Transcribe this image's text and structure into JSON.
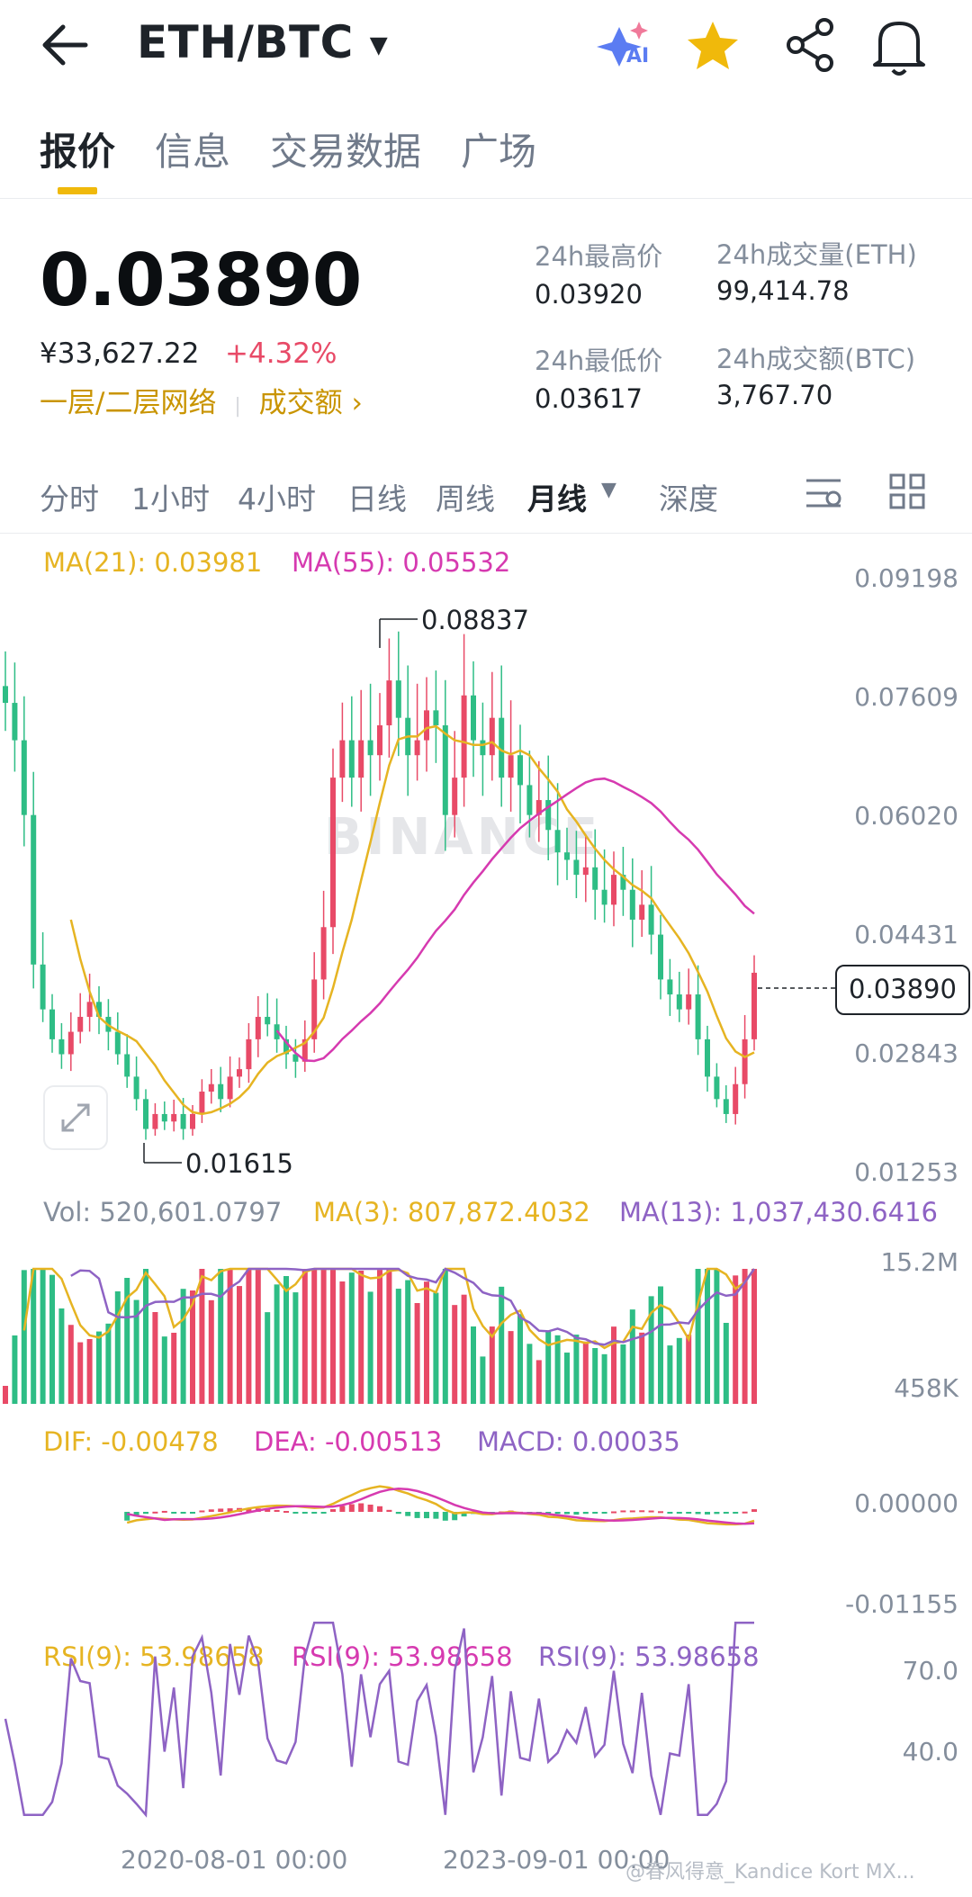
{
  "header": {
    "pair": "ETH/BTC",
    "ai_label": "AI"
  },
  "tabs": [
    "报价",
    "信息",
    "交易数据",
    "广场"
  ],
  "ticker": {
    "last_price": "0.03890",
    "cny_price": "¥33,627.22",
    "change_pct": "+4.32%",
    "network_label": "一层/二层网络",
    "volume_link": "成交额 ›",
    "stats": {
      "high_label": "24h最高价",
      "high": "0.03920",
      "low_label": "24h最低价",
      "low": "0.03617",
      "vol_eth_label": "24h成交量(ETH)",
      "vol_eth": "99,414.78",
      "vol_btc_label": "24h成交额(BTC)",
      "vol_btc": "3,767.70"
    }
  },
  "intervals": [
    "分时",
    "1小时",
    "4小时",
    "日线",
    "周线",
    "月线",
    "深度"
  ],
  "active_interval": "月线",
  "chart_data": {
    "type": "candlestick",
    "watermark": "BINANCE",
    "legend": {
      "ma21": "MA(21): 0.03981",
      "ma55": "MA(55): 0.05532"
    },
    "y_axis": [
      "0.09198",
      "0.07609",
      "0.06020",
      "0.04431",
      "0.02843",
      "0.01253"
    ],
    "ylim": [
      0.01253,
      0.09198
    ],
    "high_label": "0.08837",
    "low_label": "0.01615",
    "current_price": "0.03890",
    "candles_close": [
      0.075,
      0.07,
      0.06,
      0.04,
      0.034,
      0.03,
      0.028,
      0.031,
      0.033,
      0.035,
      0.033,
      0.031,
      0.028,
      0.025,
      0.022,
      0.018,
      0.02,
      0.019,
      0.02,
      0.018,
      0.02,
      0.023,
      0.024,
      0.022,
      0.025,
      0.026,
      0.03,
      0.033,
      0.032,
      0.03,
      0.028,
      0.027,
      0.03,
      0.038,
      0.045,
      0.065,
      0.07,
      0.065,
      0.07,
      0.068,
      0.072,
      0.078,
      0.073,
      0.068,
      0.07,
      0.074,
      0.072,
      0.06,
      0.065,
      0.076,
      0.07,
      0.068,
      0.073,
      0.065,
      0.068,
      0.064,
      0.06,
      0.062,
      0.058,
      0.055,
      0.054,
      0.052,
      0.053,
      0.05,
      0.048,
      0.052,
      0.05,
      0.046,
      0.048,
      0.044,
      0.038,
      0.036,
      0.034,
      0.036,
      0.03,
      0.025,
      0.022,
      0.02,
      0.024,
      0.03,
      0.0389
    ],
    "volume": {
      "legend_vol": "Vol: 520,601.0797",
      "legend_ma3": "MA(3): 807,872.4032",
      "legend_ma13": "MA(13): 1,037,430.6416",
      "y_axis": [
        "15.2M",
        "458K"
      ]
    },
    "macd": {
      "legend_dif": "DIF: -0.00478",
      "legend_dea": "DEA: -0.00513",
      "legend_macd": "MACD: 0.00035",
      "y_axis": [
        "0.00000",
        "-0.01155"
      ]
    },
    "rsi": {
      "legend_1": "RSI(9): 53.98658",
      "legend_2": "RSI(9): 53.98658",
      "legend_3": "RSI(9): 53.98658",
      "y_axis": [
        "70.0",
        "40.0"
      ]
    },
    "x_axis": [
      "2020-08-01 00:00",
      "2023-09-01 00:00"
    ]
  },
  "colors": {
    "up": "#e84a67",
    "down": "#2ebd85",
    "ma21": "#e6b422",
    "ma55": "#d63ab0",
    "ma13": "#8e63c4",
    "brand": "#f0b90b"
  },
  "footer_watermark": "@春风得意_Kandice Kort MX..."
}
